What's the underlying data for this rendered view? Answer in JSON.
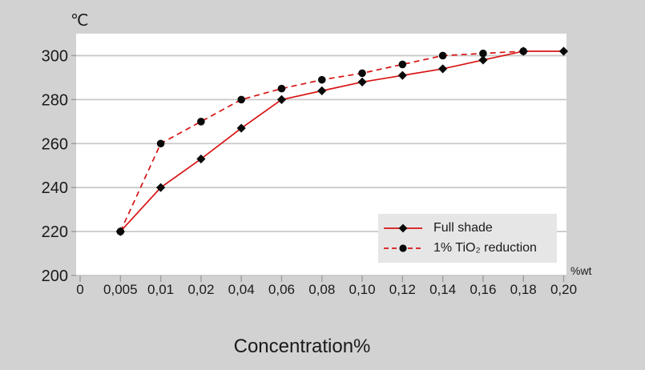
{
  "chart_data": {
    "type": "line",
    "title": "",
    "xlabel": "Concentration%",
    "x_unit": "%wt",
    "y_unit": "℃",
    "categories": [
      "0",
      "0,005",
      "0,01",
      "0,02",
      "0,04",
      "0,06",
      "0,08",
      "0,10",
      "0,12",
      "0,14",
      "0,16",
      "0,18",
      "0,20"
    ],
    "y_ticks": [
      200,
      220,
      240,
      260,
      280,
      300
    ],
    "ylim": [
      200,
      310
    ],
    "grid": true,
    "legend_position": "inside-bottom-right",
    "series": [
      {
        "name": "Full shade",
        "line": "solid",
        "marker": "diamond",
        "line_color": "#d81414",
        "marker_color": "#0a0a0a",
        "values": [
          null,
          220,
          240,
          253,
          267,
          280,
          284,
          288,
          291,
          294,
          298,
          302,
          302
        ]
      },
      {
        "name": "1% TiO₂ reduction",
        "line": "dashed",
        "marker": "circle",
        "line_color": "#d81414",
        "marker_color": "#0a0a0a",
        "values": [
          null,
          220,
          260,
          270,
          280,
          285,
          289,
          292,
          296,
          300,
          301,
          302,
          null
        ]
      }
    ]
  },
  "colors": {
    "canvas_bg": "#d2d2d2",
    "plot_bg": "#ffffff",
    "gridline": "#c9c9c9",
    "tick": "#9c9c9c",
    "legend_bg": "#e6e6e6",
    "text": "#1a1a1a",
    "series_red": "#d81414"
  }
}
